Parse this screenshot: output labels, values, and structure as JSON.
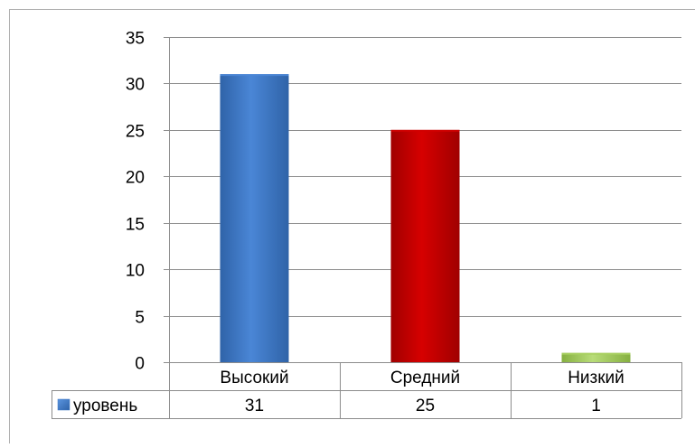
{
  "chart_data": {
    "type": "bar",
    "categories": [
      "Высокий",
      "Средний",
      "Низкий"
    ],
    "series": [
      {
        "name": "уровень",
        "values": [
          31,
          25,
          1
        ],
        "bar_colors": [
          "#4a86d6",
          "#d00000",
          "#a8d060"
        ]
      }
    ],
    "yticks": [
      "0",
      "5",
      "10",
      "15",
      "20",
      "25",
      "30",
      "35"
    ],
    "ylim": [
      0,
      35
    ],
    "grid": true,
    "data_table": true,
    "legend_key_color": "#3f78c6",
    "colors": {
      "gridline": "#8c8c8c",
      "table_border": "#8c8c8c"
    }
  }
}
